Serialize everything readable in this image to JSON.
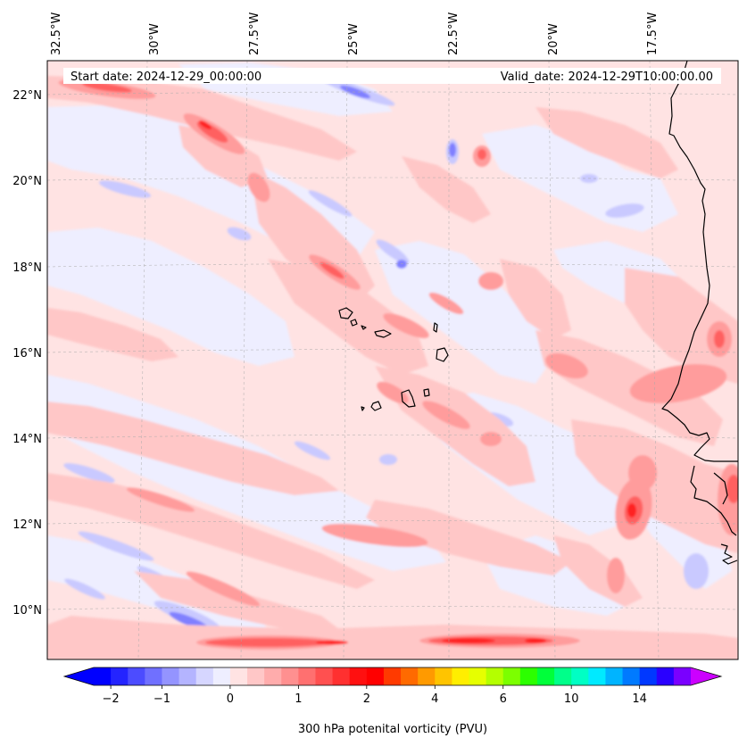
{
  "map": {
    "start_date_label": "Start date: 2024-12-29_00:00:00",
    "valid_date_label": "Valid_date: 2024-12-29T10:00:00.00",
    "lon_ticks": [
      "32.5°W",
      "30°W",
      "27.5°W",
      "25°W",
      "22.5°W",
      "20°W",
      "17.5°W"
    ],
    "lat_ticks": [
      "22°N",
      "20°N",
      "18°N",
      "16°N",
      "14°N",
      "12°N",
      "10°N"
    ],
    "extent": {
      "lon_min": -32.7,
      "lon_max": -15.2,
      "lat_min": 8.9,
      "lat_max": 22.8
    },
    "field_colors": {
      "light_red": "#ffe3e3",
      "pink": "#ffc7c7",
      "salmon": "#ff9c9c",
      "red": "#ff6b6b",
      "dark_red": "#ff3030",
      "light_blue": "#eeeeff",
      "periwinkle": "#c9c9ff",
      "blue": "#9a9aff",
      "dark_blue": "#5050ff"
    }
  },
  "colorbar": {
    "label": "300 hPa potenital vorticity (PVU)",
    "tick_labels": [
      "−2",
      "−1",
      "0",
      "1",
      "2",
      "4",
      "6",
      "10",
      "14"
    ],
    "colors": [
      "#0000ff",
      "#2424ff",
      "#4c4cff",
      "#7070ff",
      "#9494ff",
      "#b4b4ff",
      "#d6d6ff",
      "#eeeeff",
      "#ffe3e3",
      "#ffc7c7",
      "#ffacac",
      "#ff9090",
      "#ff7070",
      "#ff5050",
      "#ff3030",
      "#ff1010",
      "#ff0000",
      "#ff3a00",
      "#ff6a00",
      "#ff9a00",
      "#ffc400",
      "#ffee00",
      "#e6ff00",
      "#b4ff00",
      "#7cff00",
      "#2cff00",
      "#00ff3a",
      "#00ff8a",
      "#00ffc4",
      "#00eaff",
      "#00b4ff",
      "#007aff",
      "#0038ff",
      "#2a00ff",
      "#7a00ff"
    ],
    "extend_low_color": "#0000ff",
    "extend_high_color": "#cc00ff"
  }
}
